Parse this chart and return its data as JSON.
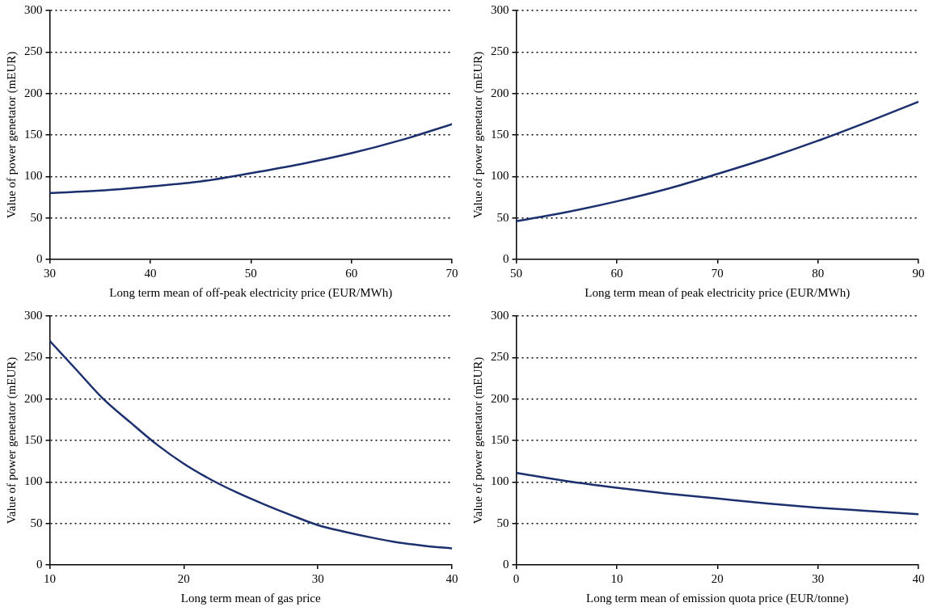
{
  "chart_data": [
    {
      "type": "line",
      "x": [
        30,
        35,
        40,
        45,
        50,
        55,
        60,
        65,
        70
      ],
      "values": [
        80,
        83,
        88,
        94,
        104,
        115,
        128,
        144,
        163
      ],
      "color": "#1c2f6e",
      "xlabel": "Long term mean of off-peak electricity price (EUR/MWh)",
      "ylabel": "Value of power genetator (mEUR)",
      "xlim": [
        30,
        70
      ],
      "xticks": [
        30,
        40,
        50,
        60,
        70
      ],
      "ylim": [
        0,
        300
      ],
      "yticks": [
        0,
        50,
        100,
        150,
        200,
        250,
        300
      ],
      "grid": "y",
      "marker": "none",
      "line_style": "solid"
    },
    {
      "type": "line",
      "x": [
        50,
        55,
        60,
        65,
        70,
        75,
        80,
        85,
        90
      ],
      "values": [
        46,
        57,
        70,
        85,
        103,
        122,
        143,
        166,
        190
      ],
      "color": "#1c2f6e",
      "xlabel": "Long term mean of peak electricity price (EUR/MWh)",
      "ylabel": "Value of power genetator (mEUR)",
      "xlim": [
        50,
        90
      ],
      "xticks": [
        50,
        60,
        70,
        80,
        90
      ],
      "ylim": [
        0,
        300
      ],
      "yticks": [
        0,
        50,
        100,
        150,
        200,
        250,
        300
      ],
      "grid": "y",
      "marker": "none",
      "line_style": "solid"
    },
    {
      "type": "line",
      "x": [
        10,
        12,
        14,
        16,
        18,
        20,
        22,
        24,
        26,
        28,
        30,
        32,
        34,
        36,
        38,
        40
      ],
      "values": [
        270,
        235,
        200,
        172,
        145,
        122,
        103,
        87,
        73,
        60,
        48,
        40,
        33,
        27,
        23,
        20
      ],
      "color": "#1c2f6e",
      "xlabel": "Long term mean of gas price",
      "ylabel": "Value of power genetator (mEUR)",
      "xlim": [
        10,
        40
      ],
      "xticks": [
        10,
        20,
        30,
        40
      ],
      "ylim": [
        0,
        300
      ],
      "yticks": [
        0,
        50,
        100,
        150,
        200,
        250,
        300
      ],
      "grid": "y",
      "marker": "none",
      "line_style": "solid"
    },
    {
      "type": "line",
      "x": [
        0,
        5,
        10,
        15,
        20,
        25,
        30,
        35,
        40
      ],
      "values": [
        111,
        101,
        93,
        86,
        80,
        74,
        69,
        65,
        61
      ],
      "color": "#1c2f6e",
      "xlabel": "Long term mean of emission quota price (EUR/tonne)",
      "ylabel": "Value of power genetator (mEUR)",
      "xlim": [
        0,
        40
      ],
      "xticks": [
        0,
        10,
        20,
        30,
        40
      ],
      "ylim": [
        0,
        300
      ],
      "yticks": [
        0,
        50,
        100,
        150,
        200,
        250,
        300
      ],
      "grid": "y",
      "marker": "none",
      "line_style": "solid"
    }
  ]
}
